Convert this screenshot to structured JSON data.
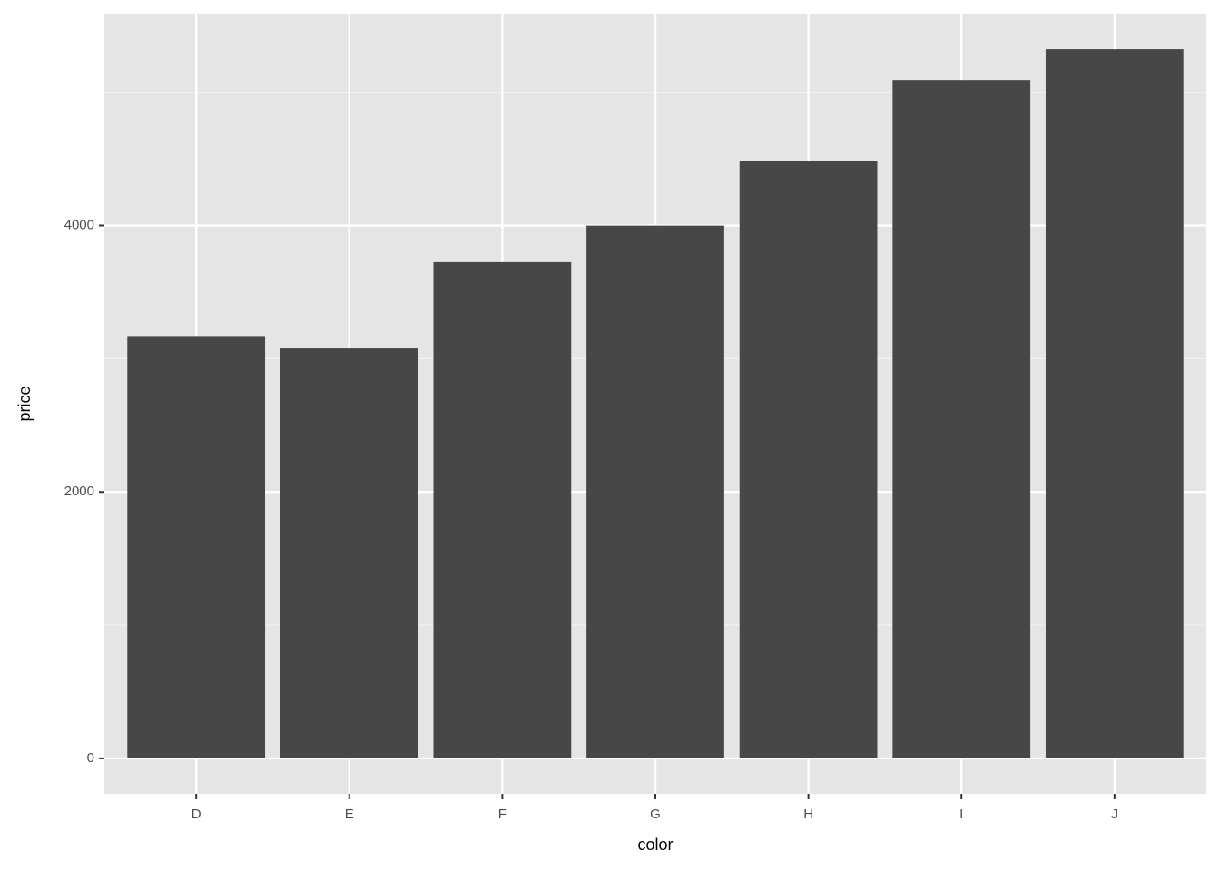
{
  "chart_data": {
    "type": "bar",
    "x_label": "color",
    "y_label": "price",
    "categories": [
      "D",
      "E",
      "F",
      "G",
      "H",
      "I",
      "J"
    ],
    "values": [
      3170,
      3077,
      3725,
      3999,
      4487,
      5092,
      5324
    ],
    "color": "#474747",
    "ylim": [
      -266.2,
      5590.2
    ],
    "yticks": [
      0,
      2000,
      4000
    ],
    "minor_yticks": [
      1000,
      3000,
      5000
    ],
    "grid": true
  }
}
